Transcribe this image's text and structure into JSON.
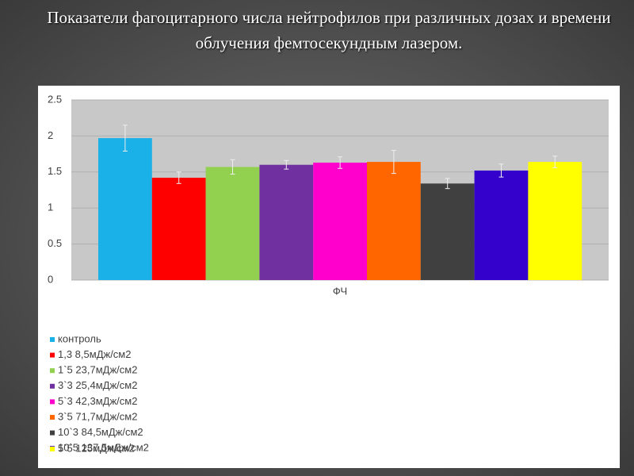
{
  "title": "Показатели фагоцитарного числа нейтрофилов при различных дозах и времени облучения фемтосекундным лазером.",
  "chart_data": {
    "type": "bar",
    "categories": [
      "ФЧ"
    ],
    "series": [
      {
        "name": "контроль",
        "color": "#1ab0e8",
        "values": [
          1.97
        ],
        "errors": [
          0.18
        ]
      },
      {
        "name": "1,3 8,5мДж/см2",
        "color": "#ff0000",
        "values": [
          1.42
        ],
        "errors": [
          0.08
        ]
      },
      {
        "name": "1`5 23,7мДж/см2",
        "color": "#92d050",
        "values": [
          1.57
        ],
        "errors": [
          0.1
        ]
      },
      {
        "name": "3`3 25,4мДж/см2",
        "color": "#7030a0",
        "values": [
          1.6
        ],
        "errors": [
          0.06
        ]
      },
      {
        "name": "5`3 42,3мДж/см2",
        "color": "#ff00cc",
        "values": [
          1.63
        ],
        "errors": [
          0.08
        ]
      },
      {
        "name": "3`5 71,7мДж/см2",
        "color": "#ff6600",
        "values": [
          1.64
        ],
        "errors": [
          0.16
        ]
      },
      {
        "name": "10`3 84,5мДж/см2",
        "color": "#404040",
        "values": [
          1.34
        ],
        "errors": [
          0.07
        ]
      },
      {
        "name": "10`5 137,5мДж/см2",
        "color": "#3300cc",
        "values": [
          1.52
        ],
        "errors": [
          0.09
        ]
      },
      {
        "name": "5`5 125мДж/см2",
        "color": "#ffff00",
        "values": [
          1.64
        ],
        "errors": [
          0.08
        ]
      }
    ],
    "ylim": [
      0,
      2.5
    ],
    "yticks": [
      0,
      0.5,
      1,
      1.5,
      2,
      2.5
    ],
    "grid": true
  }
}
